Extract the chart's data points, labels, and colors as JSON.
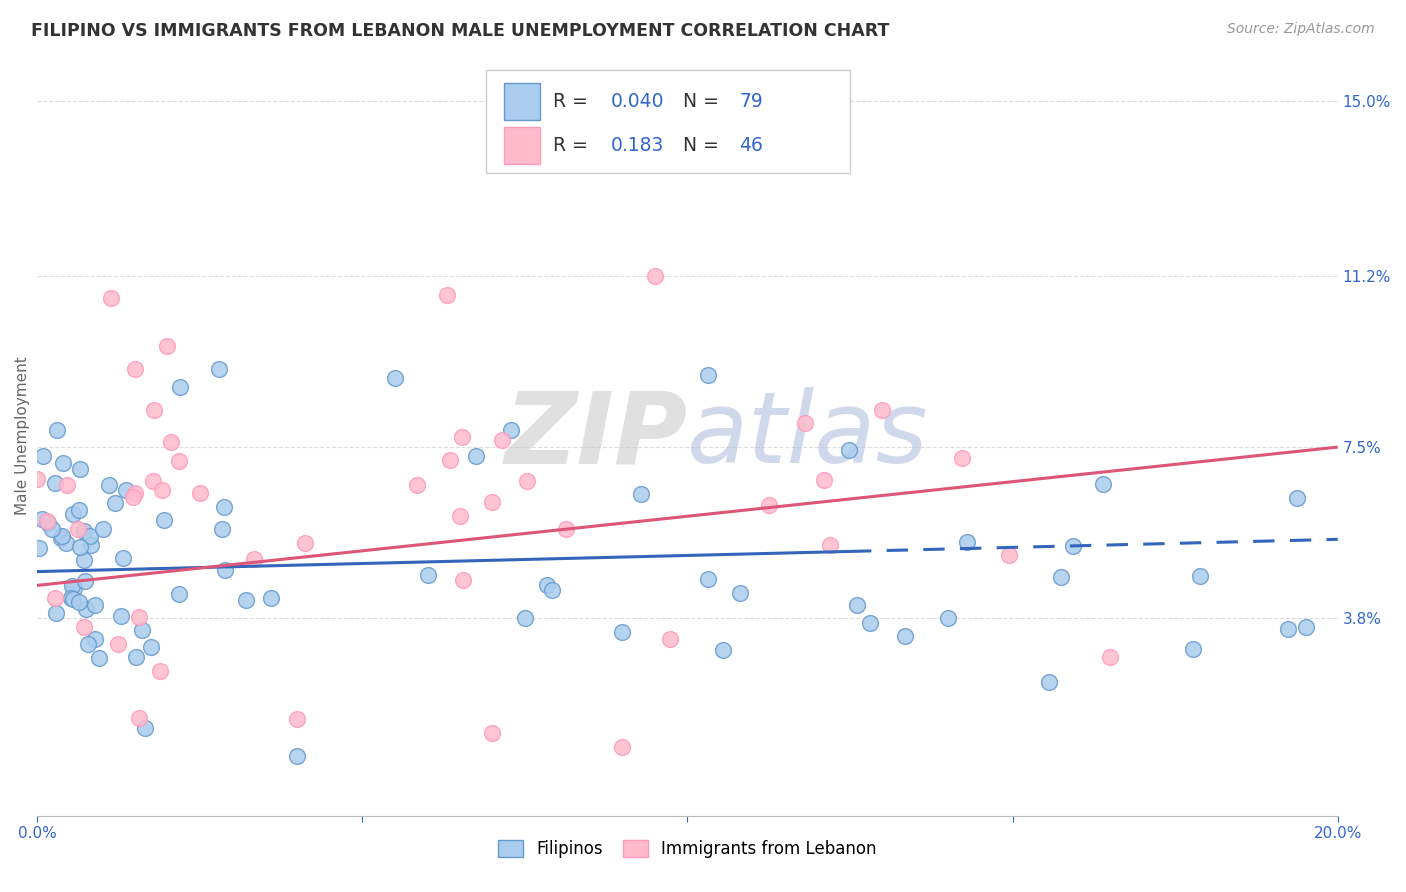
{
  "title": "FILIPINO VS IMMIGRANTS FROM LEBANON MALE UNEMPLOYMENT CORRELATION CHART",
  "source": "Source: ZipAtlas.com",
  "ylabel": "Male Unemployment",
  "xlim": [
    0.0,
    0.2
  ],
  "ylim": [
    -0.005,
    0.16
  ],
  "ytick_vals": [
    0.038,
    0.075,
    0.112,
    0.15
  ],
  "ytick_labels": [
    "3.8%",
    "7.5%",
    "11.2%",
    "15.0%"
  ],
  "xtick_vals": [
    0.0,
    0.05,
    0.1,
    0.15,
    0.2
  ],
  "xtick_labels": [
    "0.0%",
    "",
    "",
    "",
    "20.0%"
  ],
  "blue_face": "#AACCEE",
  "blue_edge": "#6699CC",
  "pink_face": "#FFBBCC",
  "pink_edge": "#FF99BB",
  "line_blue": "#3366BB",
  "line_pink": "#DD5577",
  "grid_color": "#DDDDDD",
  "R_blue": "0.040",
  "N_blue": "79",
  "R_pink": "0.183",
  "N_pink": "46",
  "watermark_zip": "ZIP",
  "watermark_atlas": "atlas",
  "legend_label_blue": "Filipinos",
  "legend_label_pink": "Immigrants from Lebanon",
  "blue_line_solid_end": 0.125,
  "blue_line_start_y": 0.048,
  "blue_line_end_y": 0.055,
  "pink_line_start_y": 0.045,
  "pink_line_end_y": 0.075
}
